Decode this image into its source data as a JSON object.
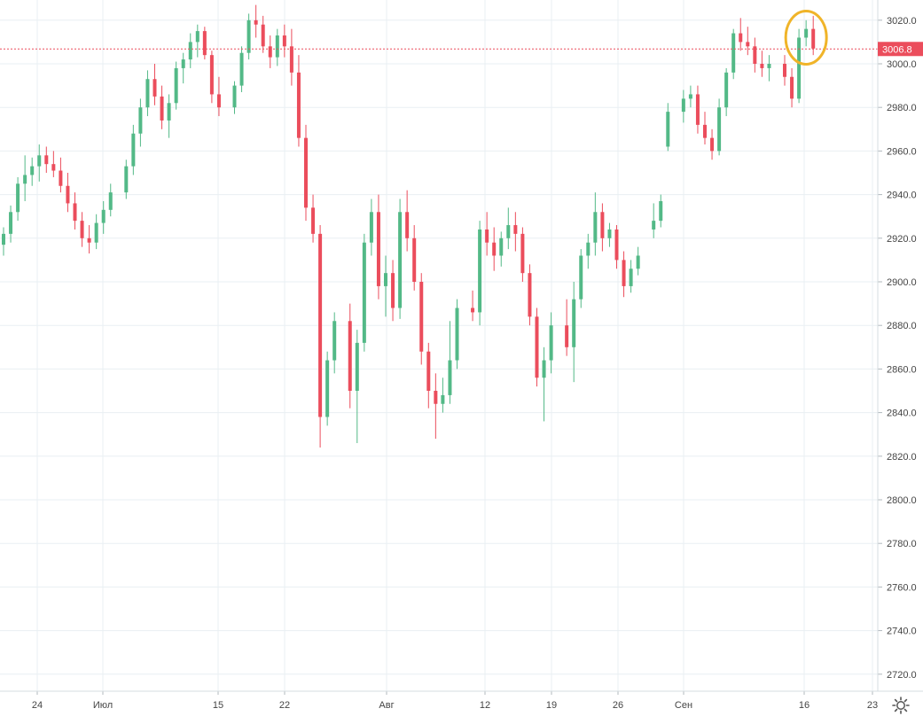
{
  "colors": {
    "up": "#53b987",
    "down": "#eb4d5c",
    "grid": "#e9eff3",
    "axis_text": "#444444",
    "last_price": "#eb4d5c",
    "highlight": "#f0b429"
  },
  "price_label": "3006.8",
  "settings_icon": "gear-icon",
  "chart_data": {
    "type": "candlestick",
    "y_ticks": [
      "3020.0",
      "3000.0",
      "2980.0",
      "2960.0",
      "2940.0",
      "2920.0",
      "2900.0",
      "2880.0",
      "2860.0",
      "2840.0",
      "2820.0",
      "2800.0",
      "2780.0",
      "2760.0",
      "2740.0",
      "2720.0"
    ],
    "x_ticks": [
      "24",
      "Июл",
      "15",
      "22",
      "Авг",
      "12",
      "19",
      "26",
      "Сен",
      "16",
      "23"
    ],
    "ylim": [
      2710,
      3028
    ],
    "last_price": 3006.8,
    "highlight": "circle around the latest candles near 3020",
    "candles": [
      [
        2917,
        2925,
        2912,
        2922
      ],
      [
        2922,
        2935,
        2918,
        2932
      ],
      [
        2932,
        2948,
        2928,
        2945
      ],
      [
        2945,
        2958,
        2937,
        2949
      ],
      [
        2949,
        2957,
        2944,
        2953
      ],
      [
        2953,
        2963,
        2946,
        2958
      ],
      [
        2958,
        2962,
        2950,
        2954
      ],
      [
        2954,
        2960,
        2948,
        2951
      ],
      [
        2951,
        2957,
        2941,
        2944
      ],
      [
        2944,
        2950,
        2932,
        2936
      ],
      [
        2936,
        2941,
        2924,
        2928
      ],
      [
        2928,
        2932,
        2916,
        2920
      ],
      [
        2920,
        2926,
        2913,
        2918
      ],
      [
        2918,
        2931,
        2915,
        2927
      ],
      [
        2927,
        2937,
        2922,
        2933
      ],
      [
        2933,
        2945,
        2930,
        2941
      ],
      [
        2941,
        2956,
        2938,
        2953
      ],
      [
        2953,
        2972,
        2949,
        2968
      ],
      [
        2968,
        2984,
        2962,
        2980
      ],
      [
        2980,
        2997,
        2976,
        2993
      ],
      [
        2993,
        3000,
        2981,
        2985
      ],
      [
        2985,
        2990,
        2970,
        2974
      ],
      [
        2974,
        2986,
        2966,
        2982
      ],
      [
        2982,
        3001,
        2979,
        2998
      ],
      [
        2998,
        3005,
        2991,
        3002
      ],
      [
        3002,
        3014,
        2998,
        3010
      ],
      [
        3010,
        3018,
        3003,
        3015
      ],
      [
        3015,
        3017,
        3002,
        3004
      ],
      [
        3004,
        3006,
        2982,
        2986
      ],
      [
        2986,
        2994,
        2976,
        2980
      ],
      [
        2980,
        2992,
        2977,
        2990
      ],
      [
        2990,
        3008,
        2987,
        3005
      ],
      [
        3005,
        3023,
        3002,
        3020
      ],
      [
        3020,
        3027,
        3012,
        3018
      ],
      [
        3018,
        3022,
        3005,
        3008
      ],
      [
        3008,
        3013,
        2998,
        3003
      ],
      [
        3003,
        3016,
        2999,
        3013
      ],
      [
        3013,
        3018,
        3003,
        3008
      ],
      [
        3008,
        3016,
        2990,
        2996
      ],
      [
        2996,
        3004,
        2962,
        2966
      ],
      [
        2966,
        2972,
        2928,
        2934
      ],
      [
        2934,
        2940,
        2918,
        2922
      ],
      [
        2922,
        2926,
        2824,
        2838
      ],
      [
        2838,
        2868,
        2834,
        2864
      ],
      [
        2864,
        2886,
        2858,
        2882
      ],
      [
        2882,
        2890,
        2842,
        2850
      ],
      [
        2850,
        2878,
        2826,
        2872
      ],
      [
        2872,
        2922,
        2868,
        2918
      ],
      [
        2918,
        2938,
        2912,
        2932
      ],
      [
        2932,
        2940,
        2892,
        2898
      ],
      [
        2898,
        2912,
        2884,
        2904
      ],
      [
        2904,
        2910,
        2882,
        2888
      ],
      [
        2888,
        2938,
        2883,
        2932
      ],
      [
        2932,
        2942,
        2914,
        2920
      ],
      [
        2920,
        2926,
        2896,
        2900
      ],
      [
        2900,
        2904,
        2862,
        2868
      ],
      [
        2868,
        2872,
        2842,
        2850
      ],
      [
        2850,
        2858,
        2828,
        2844
      ],
      [
        2844,
        2856,
        2840,
        2848
      ],
      [
        2848,
        2882,
        2844,
        2864
      ],
      [
        2864,
        2892,
        2860,
        2888
      ],
      [
        2888,
        2896,
        2882,
        2886
      ],
      [
        2886,
        2928,
        2880,
        2924
      ],
      [
        2924,
        2932,
        2912,
        2918
      ],
      [
        2918,
        2925,
        2905,
        2912
      ],
      [
        2912,
        2923,
        2907,
        2920
      ],
      [
        2920,
        2934,
        2915,
        2926
      ],
      [
        2926,
        2932,
        2914,
        2922
      ],
      [
        2922,
        2925,
        2900,
        2904
      ],
      [
        2904,
        2908,
        2880,
        2884
      ],
      [
        2884,
        2888,
        2852,
        2856
      ],
      [
        2856,
        2870,
        2836,
        2864
      ],
      [
        2864,
        2886,
        2858,
        2880
      ],
      [
        2880,
        2892,
        2866,
        2870
      ],
      [
        2870,
        2900,
        2854,
        2892
      ],
      [
        2892,
        2915,
        2888,
        2912
      ],
      [
        2912,
        2922,
        2906,
        2918
      ],
      [
        2918,
        2941,
        2912,
        2932
      ],
      [
        2932,
        2936,
        2914,
        2920
      ],
      [
        2920,
        2927,
        2916,
        2924
      ],
      [
        2924,
        2926,
        2906,
        2910
      ],
      [
        2910,
        2914,
        2893,
        2898
      ],
      [
        2898,
        2910,
        2895,
        2906
      ],
      [
        2906,
        2916,
        2903,
        2912
      ],
      [
        2924,
        2936,
        2920,
        2928
      ],
      [
        2928,
        2940,
        2925,
        2937
      ],
      [
        2962,
        2982,
        2960,
        2978
      ],
      [
        2978,
        2988,
        2973,
        2984
      ],
      [
        2984,
        2990,
        2980,
        2986
      ],
      [
        2986,
        2990,
        2968,
        2972
      ],
      [
        2972,
        2978,
        2963,
        2966
      ],
      [
        2966,
        2970,
        2956,
        2960
      ],
      [
        2960,
        2984,
        2958,
        2980
      ],
      [
        2980,
        2998,
        2976,
        2996
      ],
      [
        2996,
        3016,
        2993,
        3014
      ],
      [
        3014,
        3021,
        3006,
        3010
      ],
      [
        3010,
        3017,
        3004,
        3008
      ],
      [
        3008,
        3012,
        2996,
        3000
      ],
      [
        3000,
        3006,
        2994,
        2998
      ],
      [
        2998,
        3004,
        2992,
        3000
      ],
      [
        3000,
        3004,
        2990,
        2994
      ],
      [
        2994,
        2998,
        2980,
        2984
      ],
      [
        2984,
        3016,
        2982,
        3012
      ],
      [
        3012,
        3020,
        3008,
        3016
      ],
      [
        3016,
        3022,
        3004,
        3007
      ]
    ],
    "gaps_after": [
      15,
      29,
      44,
      60,
      72,
      83,
      86,
      99
    ]
  }
}
